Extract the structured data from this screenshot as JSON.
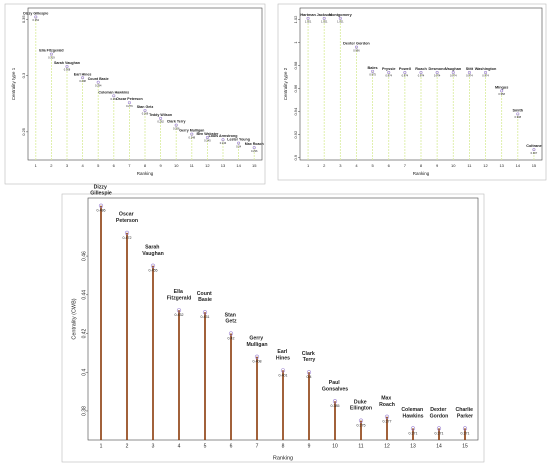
{
  "chart_data": [
    {
      "type": "lollipop",
      "y_label": "Centrality type 1",
      "x_label": "Ranking",
      "categories": [
        "1",
        "2",
        "3",
        "4",
        "5",
        "6",
        "7",
        "8",
        "9",
        "10",
        "11",
        "12",
        "13",
        "14",
        "15"
      ],
      "labels": [
        "Dizzy Gillespie",
        "Ella Fitzgerald",
        "Sarah Vaughan",
        "Earl Hines",
        "Count Basie",
        "Coleman Hawkins",
        "Oscar Peterson",
        "Stan Getz",
        "Teddy Wilson",
        "Clark Terry",
        "Gerry Mulligan",
        "Ben Webster",
        "Louis Armstrong",
        "Lester Young",
        "Max Roach"
      ],
      "values": [
        0.352,
        0.319,
        0.308,
        0.298,
        0.294,
        0.282,
        0.276,
        0.269,
        0.262,
        0.256,
        0.248,
        0.245,
        0.243,
        0.24,
        0.236
      ],
      "ylim": [
        0.225,
        0.36
      ],
      "yticks": [
        0.25,
        0.3,
        0.35
      ],
      "color": "#9a7fd0",
      "line_color": "#d8ec9a"
    },
    {
      "type": "lollipop",
      "y_label": "Centrality type 2",
      "x_label": "Ranking",
      "categories": [
        "1",
        "2",
        "3",
        "4",
        "5",
        "6",
        "7",
        "8",
        "9",
        "10",
        "11",
        "12",
        "13",
        "14",
        "15"
      ],
      "labels": [
        "Hartman",
        "Jackson",
        "Montgomery",
        "Dexter Gordon",
        "Bales",
        "Pryssie",
        "Powell",
        "Roach",
        "Desmond",
        "Vaughan",
        "Stitt",
        "Washington",
        "Mingus",
        "Smith",
        "Coltrane"
      ],
      "values": [
        1.021,
        1.021,
        1.021,
        0.996,
        0.975,
        0.974,
        0.974,
        0.974,
        0.974,
        0.974,
        0.974,
        0.974,
        0.958,
        0.938,
        0.907
      ],
      "ylim": [
        0.898,
        1.03
      ],
      "yticks": [
        0.9,
        0.92,
        0.94,
        0.96,
        0.98,
        1.0,
        1.02
      ],
      "color": "#9a7fd0",
      "line_color": "#d8ec9a"
    },
    {
      "type": "lollipop",
      "y_label": "Centrality (CWB)",
      "x_label": "Ranking",
      "categories": [
        "1",
        "2",
        "3",
        "4",
        "5",
        "6",
        "7",
        "8",
        "9",
        "10",
        "11",
        "12",
        "13",
        "14",
        "15"
      ],
      "labels": [
        "Dizzy Gillespie",
        "Oscar Peterson",
        "Sarah Vaughan",
        "Ella Fitzgerald",
        "Count Basie",
        "Stan Getz",
        "Gerry Mulligan",
        "Earl Hines",
        "Clark Terry",
        "Paul Gonsalves",
        "Duke Ellington",
        "Max Roach",
        "Coleman Hawkins",
        "Dexter Gordon",
        "Charlie Parker"
      ],
      "values": [
        0.486,
        0.472,
        0.455,
        0.432,
        0.431,
        0.42,
        0.408,
        0.401,
        0.4,
        0.385,
        0.375,
        0.377,
        0.371,
        0.371,
        0.371
      ],
      "ylim": [
        0.365,
        0.49
      ],
      "yticks": [
        0.38,
        0.4,
        0.42,
        0.44,
        0.46
      ],
      "color": "#9a7fd0",
      "line_color": "#8b3a0a"
    }
  ]
}
